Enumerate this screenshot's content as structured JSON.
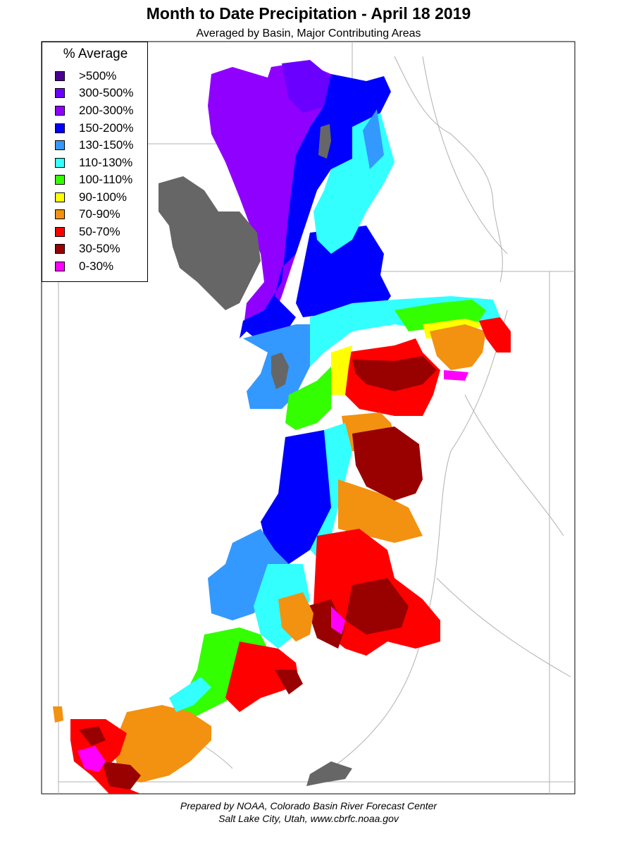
{
  "header": {
    "title": "Month to Date Precipitation - April 18 2019",
    "subtitle": "Averaged by Basin, Major Contributing Areas"
  },
  "legend": {
    "title": "% Average",
    "items": [
      {
        "label": ">500%",
        "color": "#4b0090"
      },
      {
        "label": "300-500%",
        "color": "#6a00ff"
      },
      {
        "label": "200-300%",
        "color": "#9000ff"
      },
      {
        "label": "150-200%",
        "color": "#0000ff"
      },
      {
        "label": "130-150%",
        "color": "#3399ff"
      },
      {
        "label": "110-130%",
        "color": "#33ffff"
      },
      {
        "label": "100-110%",
        "color": "#33ff00"
      },
      {
        "label": "90-100%",
        "color": "#ffff00"
      },
      {
        "label": "70-90%",
        "color": "#f39110"
      },
      {
        "label": "50-70%",
        "color": "#ff0000"
      },
      {
        "label": "30-50%",
        "color": "#990000"
      },
      {
        "label": "0-30%",
        "color": "#ff00ff"
      }
    ]
  },
  "colors": {
    "lake": "#666666",
    "border": "#b0b0b0",
    "frame": "#000000"
  },
  "credit": {
    "line1": "Prepared by NOAA, Colorado Basin River Forecast Center",
    "line2": "Salt Lake City, Utah, www.cbrfc.noaa.gov"
  }
}
